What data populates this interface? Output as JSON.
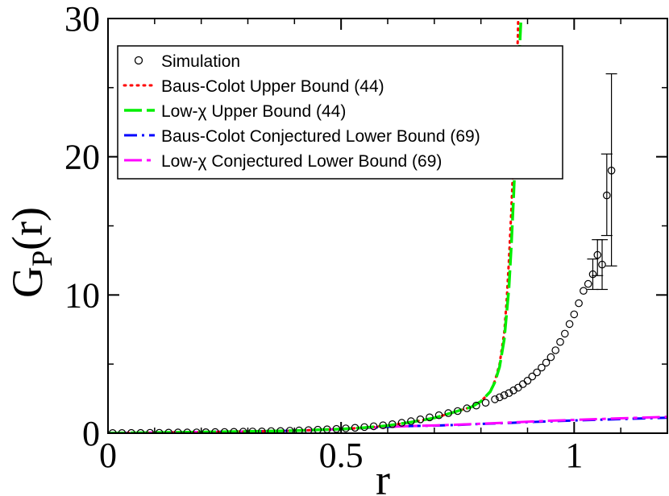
{
  "chart_data": {
    "type": "scatter",
    "title": "",
    "xlabel": "r",
    "ylabel": "G",
    "ylabel_sub": "P",
    "ylabel_tail": "(r)",
    "xlim": [
      0,
      1.2
    ],
    "ylim": [
      0,
      30
    ],
    "xticks": [
      0,
      0.5,
      1
    ],
    "xtick_labels": [
      "0",
      "0.5",
      "1"
    ],
    "yticks": [
      0,
      10,
      20,
      30
    ],
    "ytick_labels": [
      "0",
      "10",
      "20",
      "30"
    ],
    "colors": {
      "sim": "#000000",
      "bc_upper": "#ff0000",
      "lowchi_upper": "#00ee00",
      "bc_lower": "#0000ff",
      "lowchi_lower": "#ff00ff"
    },
    "legend": {
      "placement": "top-left",
      "entries": [
        {
          "key": "sim",
          "label": "Simulation",
          "style": "marker"
        },
        {
          "key": "bc_upper",
          "label": "Baus-Colot Upper Bound (44)",
          "style": "dotted"
        },
        {
          "key": "lowchi_upper",
          "label": "Low-χ Upper Bound (44)",
          "style": "long-dash"
        },
        {
          "key": "bc_lower",
          "label": "Baus-Colot Conjectured Lower Bound (69)",
          "style": "dash-dot"
        },
        {
          "key": "lowchi_lower",
          "label": "Low-χ Conjectured Lower Bound (69)",
          "style": "long-dash-dot"
        }
      ]
    },
    "series": [
      {
        "name": "Simulation",
        "key": "sim",
        "kind": "scatter",
        "x": [
          0.01,
          0.03,
          0.05,
          0.07,
          0.09,
          0.11,
          0.13,
          0.15,
          0.17,
          0.19,
          0.21,
          0.23,
          0.25,
          0.27,
          0.29,
          0.31,
          0.33,
          0.35,
          0.37,
          0.39,
          0.41,
          0.43,
          0.45,
          0.47,
          0.49,
          0.51,
          0.53,
          0.55,
          0.57,
          0.59,
          0.61,
          0.63,
          0.65,
          0.67,
          0.69,
          0.71,
          0.73,
          0.75,
          0.77,
          0.79,
          0.81,
          0.83,
          0.84,
          0.85,
          0.86,
          0.87,
          0.88,
          0.89,
          0.9,
          0.91,
          0.92,
          0.93,
          0.94,
          0.95,
          0.96,
          0.97,
          0.98,
          0.99,
          1.0,
          1.01,
          1.02,
          1.03,
          1.04,
          1.05,
          1.06,
          1.07,
          1.08
        ],
        "y": [
          0.01,
          0.01,
          0.02,
          0.02,
          0.03,
          0.03,
          0.04,
          0.05,
          0.05,
          0.06,
          0.07,
          0.08,
          0.09,
          0.1,
          0.11,
          0.12,
          0.13,
          0.15,
          0.16,
          0.18,
          0.2,
          0.22,
          0.25,
          0.28,
          0.31,
          0.35,
          0.39,
          0.44,
          0.5,
          0.57,
          0.65,
          0.75,
          0.87,
          1.0,
          1.15,
          1.3,
          1.45,
          1.6,
          1.8,
          2.0,
          2.2,
          2.45,
          2.6,
          2.75,
          2.9,
          3.1,
          3.3,
          3.55,
          3.8,
          4.1,
          4.4,
          4.75,
          5.1,
          5.5,
          6.0,
          6.6,
          7.2,
          7.9,
          8.6,
          9.4,
          10.3,
          10.8,
          11.5,
          12.9,
          12.2,
          17.2,
          19.0
        ],
        "err_x": [
          1.04,
          1.05,
          1.06,
          1.07,
          1.08
        ],
        "err_low": [
          10.4,
          11.4,
          10.4,
          14.3,
          12.1
        ],
        "err_high": [
          12.6,
          14.0,
          14.0,
          20.2,
          26.0
        ]
      },
      {
        "name": "Baus-Colot Upper Bound (44)",
        "key": "bc_upper",
        "kind": "line",
        "x": [
          0,
          0.1,
          0.2,
          0.3,
          0.4,
          0.5,
          0.55,
          0.6,
          0.65,
          0.7,
          0.75,
          0.78,
          0.8,
          0.82,
          0.83,
          0.84,
          0.85,
          0.855,
          0.86,
          0.865,
          0.87,
          0.873,
          0.876,
          0.879,
          0.88
        ],
        "y": [
          0,
          0.04,
          0.08,
          0.12,
          0.18,
          0.3,
          0.4,
          0.55,
          0.8,
          1.1,
          1.6,
          1.9,
          2.3,
          3.0,
          3.8,
          5.0,
          7.3,
          9.5,
          12.5,
          16.0,
          20.0,
          23.0,
          26.0,
          28.5,
          30.0
        ]
      },
      {
        "name": "Low-χ Upper Bound (44)",
        "key": "lowchi_upper",
        "kind": "line",
        "x": [
          0,
          0.1,
          0.2,
          0.3,
          0.4,
          0.5,
          0.55,
          0.6,
          0.65,
          0.7,
          0.75,
          0.78,
          0.8,
          0.82,
          0.83,
          0.84,
          0.85,
          0.86,
          0.865,
          0.87,
          0.875,
          0.878,
          0.881,
          0.884,
          0.886
        ],
        "y": [
          0,
          0.04,
          0.08,
          0.12,
          0.18,
          0.3,
          0.4,
          0.55,
          0.8,
          1.1,
          1.6,
          1.9,
          2.3,
          3.0,
          3.7,
          4.8,
          6.8,
          10.5,
          13.5,
          17.0,
          21.0,
          24.0,
          26.5,
          28.5,
          30.0
        ]
      },
      {
        "name": "Baus-Colot Conjectured Lower Bound (69)",
        "key": "bc_lower",
        "kind": "line",
        "x": [
          0,
          0.1,
          0.2,
          0.3,
          0.4,
          0.5,
          0.55,
          0.6,
          0.65,
          0.7,
          0.75,
          0.8,
          0.85,
          0.9,
          0.95,
          1.0,
          1.05,
          1.1,
          1.15,
          1.2
        ],
        "y": [
          0,
          0.04,
          0.08,
          0.12,
          0.18,
          0.3,
          0.38,
          0.46,
          0.52,
          0.55,
          0.6,
          0.67,
          0.73,
          0.8,
          0.86,
          0.92,
          0.97,
          1.02,
          1.07,
          1.12
        ]
      },
      {
        "name": "Low-χ Conjectured Lower Bound (69)",
        "key": "lowchi_lower",
        "kind": "line",
        "x": [
          0,
          0.1,
          0.2,
          0.3,
          0.4,
          0.5,
          0.55,
          0.6,
          0.65,
          0.7,
          0.75,
          0.8,
          0.85,
          0.9,
          0.95,
          1.0,
          1.05,
          1.1,
          1.15,
          1.2
        ],
        "y": [
          0,
          0.04,
          0.08,
          0.12,
          0.18,
          0.3,
          0.38,
          0.46,
          0.52,
          0.56,
          0.62,
          0.69,
          0.76,
          0.83,
          0.9,
          0.96,
          1.02,
          1.08,
          1.13,
          1.18
        ]
      }
    ]
  }
}
